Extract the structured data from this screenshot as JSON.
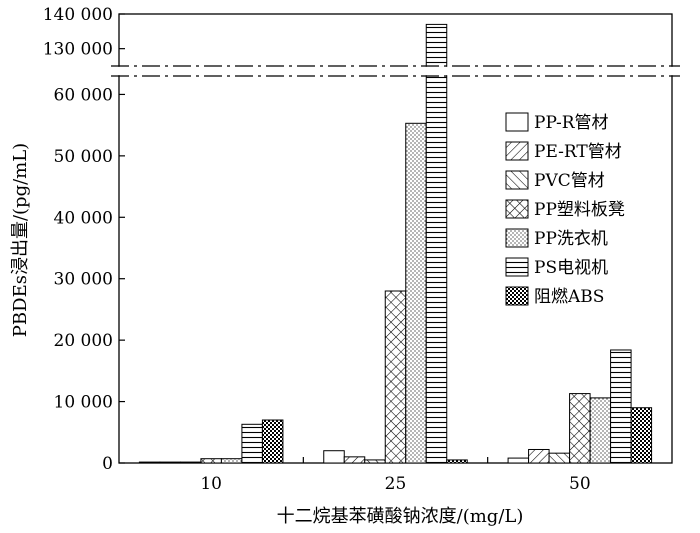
{
  "chart_data": {
    "type": "bar",
    "xlabel": "十二烷基苯磺酸钠浓度/(mg/L)",
    "ylabel": "PBDEs浸出量/(pg/mL)",
    "categories": [
      "10",
      "25",
      "50"
    ],
    "y_axis": {
      "lower_range": [
        0,
        63000
      ],
      "upper_range": [
        125000,
        140000
      ],
      "broken": true,
      "lower_ticks": [
        0,
        10000,
        20000,
        30000,
        40000,
        50000,
        60000
      ],
      "lower_tick_labels": [
        "0",
        "10 000",
        "20 000",
        "30 000",
        "40 000",
        "50 000",
        "60 000"
      ],
      "upper_ticks": [
        130000,
        140000
      ],
      "upper_tick_labels": [
        "130 000",
        "140 000"
      ]
    },
    "legend_position": "right",
    "series": [
      {
        "name": "PP-R管材",
        "pattern": "empty",
        "values": [
          150,
          2000,
          800
        ]
      },
      {
        "name": "PE-RT管材",
        "pattern": "diagonal",
        "values": [
          150,
          1000,
          2200
        ]
      },
      {
        "name": "PVC管材",
        "pattern": "back-diagonal",
        "values": [
          150,
          500,
          1600
        ]
      },
      {
        "name": "PP塑料板凳",
        "pattern": "crosshatch",
        "values": [
          700,
          28000,
          11300
        ]
      },
      {
        "name": "PP洗衣机",
        "pattern": "dotted",
        "values": [
          700,
          55300,
          10600
        ]
      },
      {
        "name": "PS电视机",
        "pattern": "horizontal",
        "values": [
          6300,
          137000,
          18400
        ]
      },
      {
        "name": "阻燃ABS",
        "pattern": "checker",
        "values": [
          7000,
          500,
          9000
        ]
      }
    ]
  }
}
